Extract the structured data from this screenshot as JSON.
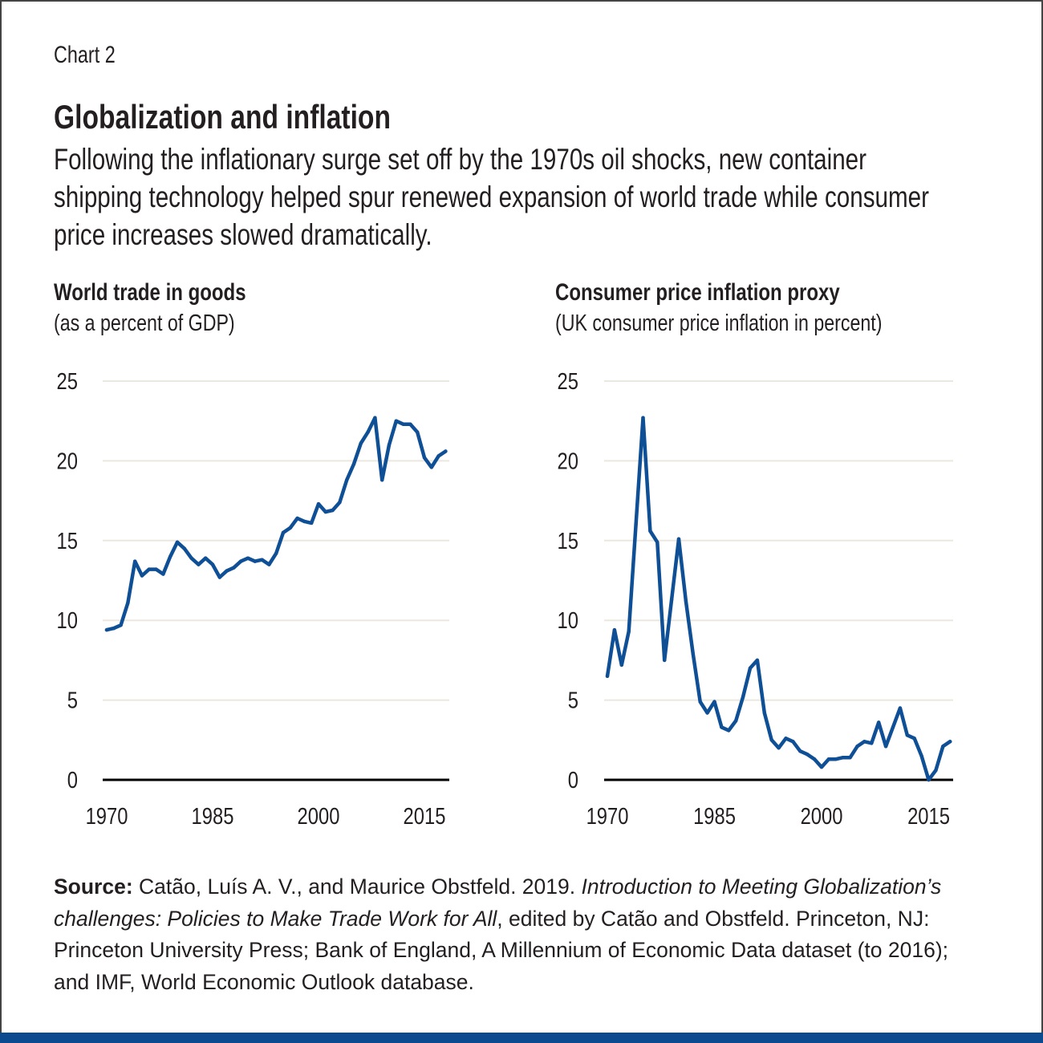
{
  "label": "Chart 2",
  "title": "Globalization and inflation",
  "subtitle": "Following the inflationary surge set off by the 1970s oil shocks, new container shipping technology helped spur renewed expansion of world trade while consumer price increases slowed dramatically.",
  "colors": {
    "line": "#0e4f96",
    "grid": "#ebe8df",
    "axis": "#000000",
    "bottom_bar": "#0c4a8f"
  },
  "chart_data": [
    {
      "type": "line",
      "title": "World trade in goods",
      "subtitle": "(as a percent of GDP)",
      "x_ticks": [
        "1970",
        "1985",
        "2000",
        "2015"
      ],
      "y_ticks": [
        "0",
        "5",
        "10",
        "15",
        "20",
        "25"
      ],
      "ylim": [
        0,
        25
      ],
      "grid": true,
      "x": [
        1970,
        1971,
        1972,
        1973,
        1974,
        1975,
        1976,
        1977,
        1978,
        1979,
        1980,
        1981,
        1982,
        1983,
        1984,
        1985,
        1986,
        1987,
        1988,
        1989,
        1990,
        1991,
        1992,
        1993,
        1994,
        1995,
        1996,
        1997,
        1998,
        1999,
        2000,
        2001,
        2002,
        2003,
        2004,
        2005,
        2006,
        2007,
        2008,
        2009,
        2010,
        2011,
        2012,
        2013,
        2014,
        2015,
        2016,
        2017,
        2018
      ],
      "values": [
        9.4,
        9.5,
        9.7,
        11.1,
        13.7,
        12.8,
        13.2,
        13.2,
        12.9,
        14.0,
        14.9,
        14.5,
        13.9,
        13.5,
        13.9,
        13.5,
        12.7,
        13.1,
        13.3,
        13.7,
        13.9,
        13.7,
        13.8,
        13.5,
        14.2,
        15.5,
        15.8,
        16.4,
        16.2,
        16.1,
        17.3,
        16.8,
        16.9,
        17.4,
        18.8,
        19.8,
        21.1,
        21.8,
        22.7,
        18.8,
        21.0,
        22.5,
        22.3,
        22.3,
        21.8,
        20.2,
        19.6,
        20.3,
        20.6
      ]
    },
    {
      "type": "line",
      "title": "Consumer price inflation proxy",
      "subtitle": "(UK consumer price inflation in percent)",
      "x_ticks": [
        "1970",
        "1985",
        "2000",
        "2015"
      ],
      "y_ticks": [
        "0",
        "5",
        "10",
        "15",
        "20",
        "25"
      ],
      "ylim": [
        0,
        25
      ],
      "grid": true,
      "x": [
        1970,
        1971,
        1972,
        1973,
        1974,
        1975,
        1976,
        1977,
        1978,
        1979,
        1980,
        1981,
        1982,
        1983,
        1984,
        1985,
        1986,
        1987,
        1988,
        1989,
        1990,
        1991,
        1992,
        1993,
        1994,
        1995,
        1996,
        1997,
        1998,
        1999,
        2000,
        2001,
        2002,
        2003,
        2004,
        2005,
        2006,
        2007,
        2008,
        2009,
        2010,
        2011,
        2012,
        2013,
        2014,
        2015,
        2016,
        2017,
        2018
      ],
      "values": [
        6.5,
        9.4,
        7.2,
        9.3,
        16.0,
        22.7,
        15.6,
        14.9,
        7.5,
        11.3,
        15.1,
        11.2,
        7.9,
        4.9,
        4.2,
        4.9,
        3.3,
        3.1,
        3.7,
        5.2,
        7.0,
        7.5,
        4.2,
        2.5,
        2.0,
        2.6,
        2.4,
        1.8,
        1.6,
        1.3,
        0.8,
        1.3,
        1.3,
        1.4,
        1.4,
        2.1,
        2.4,
        2.3,
        3.6,
        2.1,
        3.3,
        4.5,
        2.8,
        2.6,
        1.5,
        0.0,
        0.6,
        2.1,
        2.4
      ]
    }
  ],
  "source": {
    "label": "Source:",
    "text1": " Catão, Luís A. V., and Maurice Obstfeld. 2019. ",
    "italic": "Introduction to Meeting Globalization’s challenges: Policies to Make Trade Work for All",
    "text2": ", edited by Catão and Obstfeld. Princeton, NJ: Princeton University Press; Bank of England, A Millennium of Economic Data dataset (to 2016); and IMF, World Economic Outlook database."
  }
}
